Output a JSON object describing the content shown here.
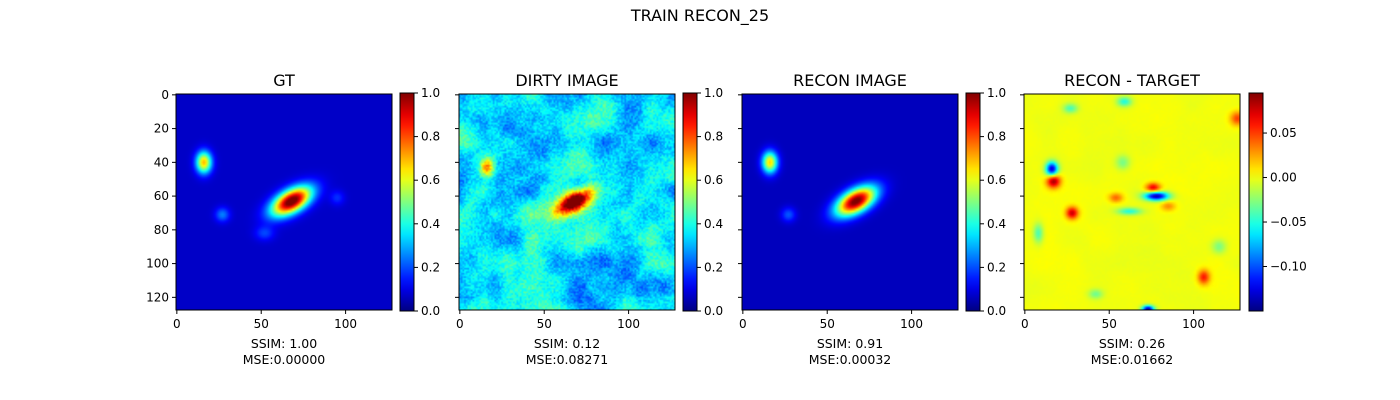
{
  "figure": {
    "title": "TRAIN RECON_25"
  },
  "chart_data": [
    {
      "type": "heatmap",
      "title": "GT",
      "colormap": "jet",
      "x_ticks": [
        "0",
        "50",
        "100"
      ],
      "y_ticks": [
        "0",
        "20",
        "40",
        "60",
        "80",
        "100",
        "120"
      ],
      "image_extent": [
        0,
        128
      ],
      "colorbar": {
        "range": [
          0.0,
          1.0
        ],
        "ticks": [
          "0.0",
          "0.2",
          "0.4",
          "0.6",
          "0.8",
          "1.0"
        ]
      },
      "background_level": 0.07,
      "blobs": [
        {
          "x": 68,
          "y": 63,
          "peak": 1.0,
          "size_x": 9,
          "size_y": 4.5,
          "angle_deg": -30
        },
        {
          "x": 16,
          "y": 40,
          "peak": 0.62,
          "size_x": 3.2,
          "size_y": 4.5,
          "angle_deg": 0
        },
        {
          "x": 27,
          "y": 71,
          "peak": 0.18,
          "size_x": 3,
          "size_y": 3,
          "angle_deg": 0
        },
        {
          "x": 52,
          "y": 82,
          "peak": 0.12,
          "size_x": 4,
          "size_y": 3,
          "angle_deg": 0
        },
        {
          "x": 95,
          "y": 61,
          "peak": 0.1,
          "size_x": 3,
          "size_y": 3,
          "angle_deg": 0
        }
      ],
      "xlabel": "SSIM: 1.00\nMSE:0.00000"
    },
    {
      "type": "heatmap",
      "title": "DIRTY IMAGE",
      "colormap": "jet",
      "x_ticks": [
        "0",
        "50",
        "100"
      ],
      "y_ticks": [
        "",
        "",
        "",
        "",
        "",
        "",
        ""
      ],
      "image_extent": [
        0,
        128
      ],
      "colorbar": {
        "range": [
          0.0,
          1.0
        ],
        "ticks": [
          "0.0",
          "0.2",
          "0.4",
          "0.6",
          "0.8",
          "1.0"
        ]
      },
      "background_level": 0.35,
      "noise": 0.12,
      "blobs": [
        {
          "x": 68,
          "y": 63,
          "peak": 0.85,
          "size_x": 8,
          "size_y": 4,
          "angle_deg": -30
        },
        {
          "x": 16,
          "y": 43,
          "peak": 0.45,
          "size_x": 3,
          "size_y": 4,
          "angle_deg": 0
        }
      ],
      "xlabel": "SSIM: 0.12\nMSE:0.08271"
    },
    {
      "type": "heatmap",
      "title": "RECON IMAGE",
      "colormap": "jet",
      "x_ticks": [
        "0",
        "50",
        "100"
      ],
      "y_ticks": [
        "",
        "",
        "",
        "",
        "",
        "",
        ""
      ],
      "image_extent": [
        0,
        128
      ],
      "colorbar": {
        "range": [
          0.0,
          1.0
        ],
        "ticks": [
          "0.0",
          "0.2",
          "0.4",
          "0.6",
          "0.8",
          "1.0"
        ]
      },
      "background_level": 0.06,
      "blobs": [
        {
          "x": 67,
          "y": 63,
          "peak": 0.97,
          "size_x": 9,
          "size_y": 4.6,
          "angle_deg": -30
        },
        {
          "x": 16,
          "y": 40,
          "peak": 0.6,
          "size_x": 3.2,
          "size_y": 4.5,
          "angle_deg": 0
        },
        {
          "x": 27,
          "y": 71,
          "peak": 0.15,
          "size_x": 3,
          "size_y": 3,
          "angle_deg": 0
        }
      ],
      "xlabel": "SSIM: 0.91\nMSE:0.00032"
    },
    {
      "type": "heatmap",
      "title": "RECON - TARGET",
      "colormap": "jet",
      "x_ticks": [
        "0",
        "50",
        "100"
      ],
      "y_ticks": [
        "",
        "",
        "",
        "",
        "",
        "",
        ""
      ],
      "image_extent": [
        0,
        128
      ],
      "colorbar": {
        "range": [
          -0.15,
          0.095
        ],
        "ticks": [
          "0.05",
          "0.00",
          "−0.05",
          "−0.10"
        ],
        "tick_values": [
          0.05,
          0.0,
          -0.05,
          -0.1
        ]
      },
      "background_level": 0.0,
      "noise": 0.004,
      "blobs": [
        {
          "x": 16,
          "y": 44,
          "peak": -0.13,
          "size_x": 2.5,
          "size_y": 3,
          "angle_deg": 0
        },
        {
          "x": 17,
          "y": 51,
          "peak": 0.09,
          "size_x": 2.8,
          "size_y": 2.8,
          "angle_deg": 0
        },
        {
          "x": 28,
          "y": 70,
          "peak": 0.075,
          "size_x": 2.5,
          "size_y": 2.5,
          "angle_deg": 0
        },
        {
          "x": 78,
          "y": 60,
          "peak": -0.14,
          "size_x": 5,
          "size_y": 1.8,
          "angle_deg": 0
        },
        {
          "x": 76,
          "y": 55,
          "peak": 0.07,
          "size_x": 3,
          "size_y": 2,
          "angle_deg": 0
        },
        {
          "x": 62,
          "y": 69,
          "peak": -0.05,
          "size_x": 5,
          "size_y": 1.5,
          "angle_deg": 0
        },
        {
          "x": 54,
          "y": 61,
          "peak": 0.04,
          "size_x": 3,
          "size_y": 2,
          "angle_deg": 0
        },
        {
          "x": 85,
          "y": 66,
          "peak": 0.03,
          "size_x": 3,
          "size_y": 2,
          "angle_deg": 0
        },
        {
          "x": 73,
          "y": 127,
          "peak": -0.14,
          "size_x": 2.5,
          "size_y": 1.5,
          "angle_deg": 0
        },
        {
          "x": 106,
          "y": 108,
          "peak": 0.06,
          "size_x": 2.5,
          "size_y": 3,
          "angle_deg": 0
        },
        {
          "x": 126,
          "y": 14,
          "peak": 0.05,
          "size_x": 3,
          "size_y": 3,
          "angle_deg": 0
        },
        {
          "x": 27,
          "y": 8,
          "peak": -0.04,
          "size_x": 3,
          "size_y": 2,
          "angle_deg": 0
        },
        {
          "x": 59,
          "y": 4,
          "peak": -0.05,
          "size_x": 3,
          "size_y": 2,
          "angle_deg": 0
        },
        {
          "x": 8,
          "y": 82,
          "peak": -0.04,
          "size_x": 2,
          "size_y": 4,
          "angle_deg": 0
        },
        {
          "x": 58,
          "y": 40,
          "peak": -0.03,
          "size_x": 3,
          "size_y": 3,
          "angle_deg": 0
        },
        {
          "x": 42,
          "y": 118,
          "peak": -0.03,
          "size_x": 3,
          "size_y": 2,
          "angle_deg": 0
        },
        {
          "x": 115,
          "y": 90,
          "peak": -0.03,
          "size_x": 3,
          "size_y": 3,
          "angle_deg": 0
        }
      ],
      "xlabel": "SSIM: 0.26\nMSE:0.01662"
    }
  ]
}
